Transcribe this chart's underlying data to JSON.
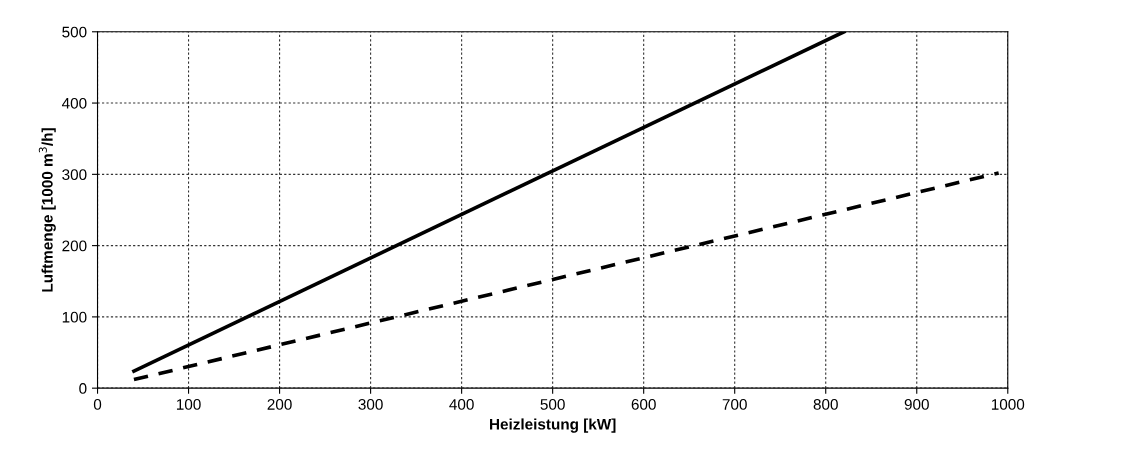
{
  "chart_data": {
    "type": "line",
    "xlabel": "Heizleistung [kW]",
    "ylabel": "Luftmenge [1000 m$^{3}$/h]",
    "xlim": [
      0,
      1000
    ],
    "xticks": [
      0,
      100,
      200,
      300,
      400,
      500,
      600,
      700,
      800,
      900,
      1000
    ],
    "ylim": [
      0,
      500
    ],
    "yticks": [
      0,
      100,
      200,
      300,
      400,
      500
    ],
    "grid": true,
    "legend": false,
    "marker": "none",
    "series": [
      {
        "color": "#000000",
        "line_style": "solid",
        "x": [
          40,
          820
        ],
        "values": [
          24,
          500
        ]
      },
      {
        "color": "#000000",
        "line_style": "dashed",
        "x": [
          40,
          990
        ],
        "values": [
          12,
          302
        ]
      }
    ]
  }
}
